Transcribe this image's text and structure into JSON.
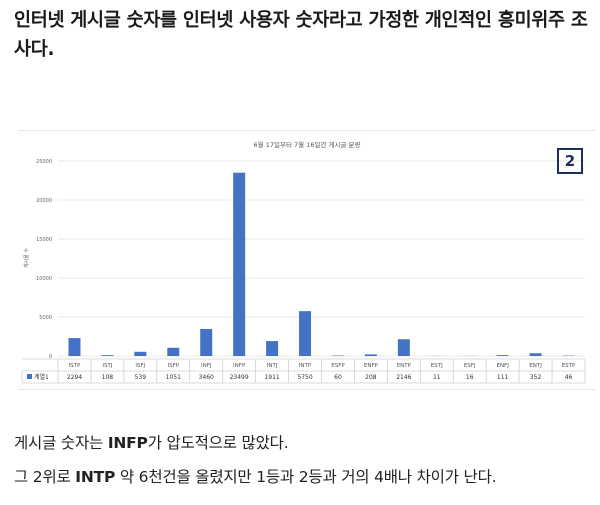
{
  "headline": "인터넷 게시글 숫자를 인터넷 사용자 숫자라고 가정한 개인적인 흥미위주 조사다.",
  "badge": "2",
  "chart_data": {
    "type": "bar",
    "title": "6월 17일부터 7월 16일간 게시글 분량",
    "ylabel": "게시물 수",
    "ylim": [
      0,
      25000
    ],
    "yticks": [
      0,
      5000,
      10000,
      15000,
      20000,
      25000
    ],
    "grid": true,
    "categories": [
      "ISTP",
      "ISTJ",
      "ISFJ",
      "ISFP",
      "INFJ",
      "INFP",
      "INTJ",
      "INTP",
      "ESFP",
      "ENFP",
      "ENTP",
      "ESTJ",
      "ESFJ",
      "ENFJ",
      "ENTJ",
      "ESTP"
    ],
    "series": [
      {
        "name": "계열1",
        "color": "#4472c4",
        "values": [
          2294,
          108,
          539,
          1051,
          3460,
          23499,
          1911,
          5750,
          60,
          208,
          2146,
          11,
          16,
          111,
          352,
          46
        ]
      }
    ],
    "table_legend": "계열1"
  },
  "para1": {
    "a": "게시글 숫자는 ",
    "b": "INFP",
    "c": "가 압도적으로 많았다."
  },
  "para2": {
    "a": "그 2위로 ",
    "b": "INTP",
    "c": " 약 6천건을 올렸지만 1등과 2등과 거의 4배나 차이가 난다."
  }
}
